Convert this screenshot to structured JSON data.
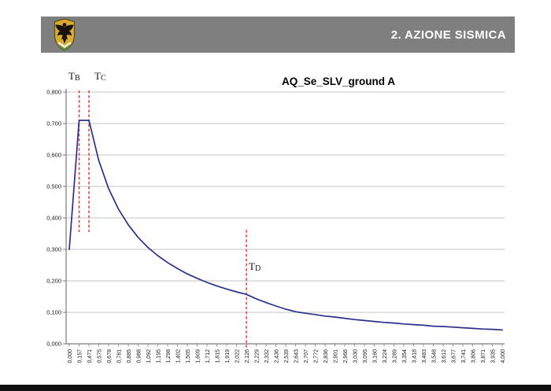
{
  "header": {
    "title": "2. AZIONE SISMICA",
    "bar_color": "#7f7f7f",
    "logo_icon": "eagle-shield-crest"
  },
  "footer": {
    "bar_color": "#101010"
  },
  "chart_data": {
    "type": "line",
    "title": "AQ_Se_SLV_ground A",
    "xlabel": "",
    "ylabel": "",
    "ylim": [
      0,
      0.8
    ],
    "y_tick_step": 0.1,
    "grid": true,
    "legend": false,
    "line_color": "#2d2f8e",
    "marker_color": "#e23128",
    "grid_color": "#c3c3c3",
    "axis_color": "#7a7a7a",
    "y_tick_labels": [
      "0,000",
      "0,100",
      "0,200",
      "0,300",
      "0,400",
      "0,500",
      "0,600",
      "0,700",
      "0,800"
    ],
    "x_tick_labels": [
      "0,000",
      "0,157",
      "0,471",
      "0,575",
      "0,678",
      "0,781",
      "0,885",
      "0,988",
      "1,092",
      "1,195",
      "1,298",
      "1,402",
      "1,505",
      "1,609",
      "1,712",
      "1,815",
      "1,919",
      "2,022",
      "2,126",
      "2,229",
      "2,332",
      "2,436",
      "2,539",
      "2,643",
      "2,707",
      "2,772",
      "2,836",
      "2,901",
      "2,966",
      "3,030",
      "3,095",
      "3,160",
      "3,224",
      "3,289",
      "3,354",
      "3,418",
      "3,483",
      "3,548",
      "3,612",
      "3,677",
      "3,741",
      "3,806",
      "3,871",
      "3,935",
      "4,000"
    ],
    "x_values": [
      0.0,
      0.157,
      0.471,
      0.575,
      0.678,
      0.781,
      0.885,
      0.988,
      1.092,
      1.195,
      1.298,
      1.402,
      1.505,
      1.609,
      1.712,
      1.815,
      1.919,
      2.022,
      2.126,
      2.229,
      2.332,
      2.436,
      2.539,
      2.643,
      2.707,
      2.772,
      2.836,
      2.901,
      2.966,
      3.03,
      3.095,
      3.16,
      3.224,
      3.289,
      3.354,
      3.418,
      3.483,
      3.548,
      3.612,
      3.677,
      3.741,
      3.806,
      3.871,
      3.935,
      4.0
    ],
    "series": [
      {
        "name": "AQ_Se_SLV_ground A",
        "values": [
          0.3,
          0.71,
          0.71,
          0.582,
          0.493,
          0.428,
          0.378,
          0.338,
          0.306,
          0.28,
          0.258,
          0.239,
          0.222,
          0.208,
          0.195,
          0.184,
          0.174,
          0.165,
          0.157,
          0.143,
          0.131,
          0.12,
          0.11,
          0.102,
          0.097,
          0.093,
          0.088,
          0.085,
          0.081,
          0.077,
          0.074,
          0.071,
          0.068,
          0.066,
          0.063,
          0.061,
          0.059,
          0.056,
          0.055,
          0.053,
          0.051,
          0.049,
          0.047,
          0.046,
          0.044
        ]
      }
    ],
    "markers": [
      {
        "label_main": "T",
        "label_sub": "B",
        "x_value": 0.157,
        "category_index": 1,
        "line_from": 0.805,
        "line_to": 0.355
      },
      {
        "label_main": "T",
        "label_sub": "C",
        "x_value": 0.471,
        "category_index": 2,
        "line_from": 0.805,
        "line_to": 0.355
      },
      {
        "label_main": "T",
        "label_sub": "D",
        "x_value": 2.126,
        "category_index": 18,
        "line_from": 0.362,
        "line_to": -0.012
      }
    ]
  }
}
